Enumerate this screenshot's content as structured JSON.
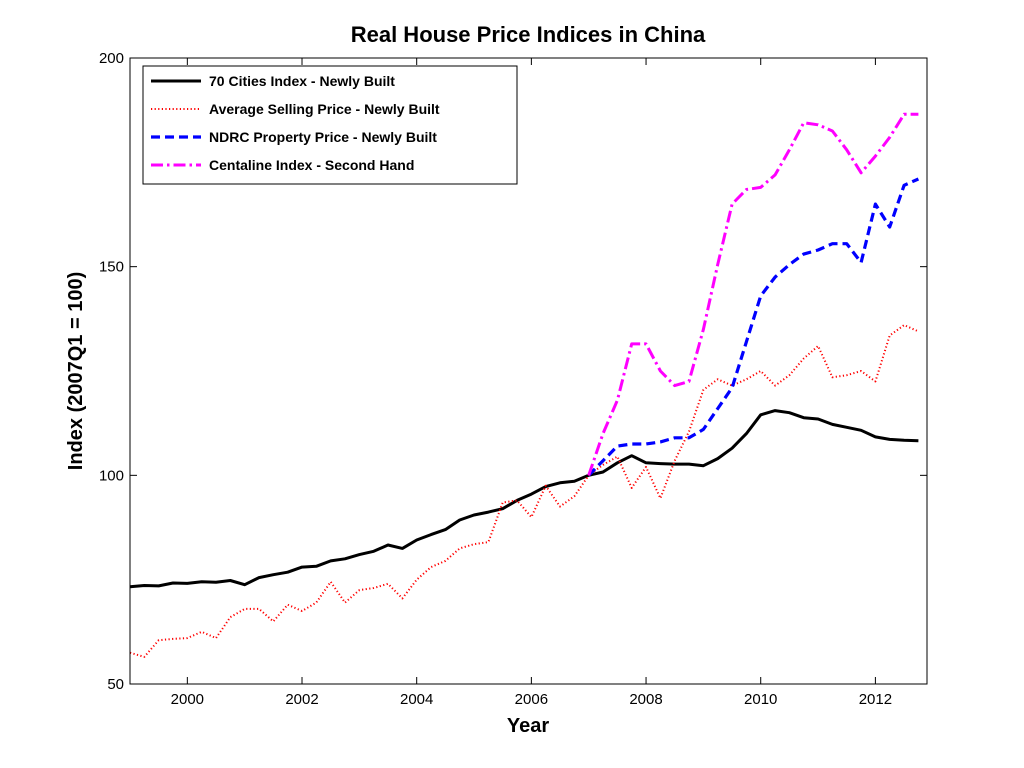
{
  "chart_data": {
    "type": "line",
    "title": "Real House Price Indices in China",
    "xlabel": "Year",
    "ylabel": "Index (2007Q1 = 100)",
    "xlim": [
      1999.0,
      2012.9
    ],
    "ylim": [
      50,
      200
    ],
    "xticks": [
      2000,
      2002,
      2004,
      2006,
      2008,
      2010,
      2012
    ],
    "yticks": [
      50,
      100,
      150,
      200
    ],
    "legend_position": "top-left",
    "grid": false,
    "series": [
      {
        "name": "70 Cities Index - Newly Built",
        "color": "#000000",
        "style": "solid",
        "x": [
          1999.0,
          1999.25,
          1999.5,
          1999.75,
          2000.0,
          2000.25,
          2000.5,
          2000.75,
          2001.0,
          2001.25,
          2001.5,
          2001.75,
          2002.0,
          2002.25,
          2002.5,
          2002.75,
          2003.0,
          2003.25,
          2003.5,
          2003.75,
          2004.0,
          2004.25,
          2004.5,
          2004.75,
          2005.0,
          2005.25,
          2005.5,
          2005.75,
          2006.0,
          2006.25,
          2006.5,
          2006.75,
          2007.0,
          2007.25,
          2007.5,
          2007.75,
          2008.0,
          2008.25,
          2008.5,
          2008.75,
          2009.0,
          2009.25,
          2009.5,
          2009.75,
          2010.0,
          2010.25,
          2010.5,
          2010.75,
          2011.0,
          2011.25,
          2011.5,
          2011.75,
          2012.0,
          2012.25,
          2012.5,
          2012.75
        ],
        "values": [
          73.3,
          73.6,
          73.5,
          74.2,
          74.1,
          74.5,
          74.4,
          74.8,
          73.8,
          75.5,
          76.2,
          76.8,
          78.0,
          78.2,
          79.5,
          80.0,
          81.0,
          81.8,
          83.3,
          82.5,
          84.5,
          85.8,
          87.0,
          89.3,
          90.5,
          91.2,
          92.0,
          94.0,
          95.5,
          97.3,
          98.2,
          98.6,
          100.0,
          100.8,
          103.0,
          104.7,
          103.0,
          102.8,
          102.7,
          102.7,
          102.3,
          104.0,
          106.5,
          110.0,
          114.5,
          115.5,
          115.0,
          113.8,
          113.5,
          112.2,
          111.5,
          110.8,
          109.2,
          108.6,
          108.4,
          108.3
        ]
      },
      {
        "name": "Average Selling Price - Newly Built",
        "color": "#ff0000",
        "style": "dotted",
        "x": [
          1999.0,
          1999.25,
          1999.5,
          1999.75,
          2000.0,
          2000.25,
          2000.5,
          2000.75,
          2001.0,
          2001.25,
          2001.5,
          2001.75,
          2002.0,
          2002.25,
          2002.5,
          2002.75,
          2003.0,
          2003.25,
          2003.5,
          2003.75,
          2004.0,
          2004.25,
          2004.5,
          2004.75,
          2005.0,
          2005.25,
          2005.5,
          2005.75,
          2006.0,
          2006.25,
          2006.5,
          2006.75,
          2007.0,
          2007.25,
          2007.5,
          2007.75,
          2008.0,
          2008.25,
          2008.5,
          2008.75,
          2009.0,
          2009.25,
          2009.5,
          2009.75,
          2010.0,
          2010.25,
          2010.5,
          2010.75,
          2011.0,
          2011.25,
          2011.5,
          2011.75,
          2012.0,
          2012.25,
          2012.5,
          2012.75
        ],
        "values": [
          57.5,
          56.5,
          60.5,
          60.8,
          61.0,
          62.5,
          61.0,
          66.0,
          68.0,
          68.0,
          65.0,
          69.0,
          67.5,
          69.5,
          74.5,
          69.5,
          72.5,
          73.0,
          74.0,
          70.5,
          75.0,
          78.0,
          79.5,
          82.5,
          83.5,
          84.0,
          93.5,
          94.0,
          90.0,
          97.5,
          92.5,
          95.0,
          100.0,
          102.5,
          104.5,
          97.0,
          102.0,
          94.5,
          103.5,
          110.5,
          120.5,
          123.0,
          121.5,
          123.0,
          125.0,
          121.5,
          124.0,
          128.0,
          131.0,
          123.5,
          124.0,
          125.0,
          122.5,
          133.5,
          136.0,
          134.5
        ]
      },
      {
        "name": "NDRC Property Price - Newly Built",
        "color": "#0000ff",
        "style": "dashed",
        "x": [
          2007.0,
          2007.25,
          2007.5,
          2007.75,
          2008.0,
          2008.25,
          2008.5,
          2008.75,
          2009.0,
          2009.25,
          2009.5,
          2009.75,
          2010.0,
          2010.25,
          2010.5,
          2010.75,
          2011.0,
          2011.25,
          2011.5,
          2011.75,
          2012.0,
          2012.25,
          2012.5,
          2012.75
        ],
        "values": [
          100.0,
          103.5,
          107.0,
          107.5,
          107.5,
          108.0,
          109.0,
          109.0,
          111.0,
          116.0,
          121.0,
          132.0,
          143.0,
          147.5,
          150.5,
          153.0,
          154.0,
          155.5,
          155.5,
          151.0,
          165.0,
          159.5,
          169.5,
          171.0
        ]
      },
      {
        "name": "Centaline Index - Second Hand",
        "color": "#ff00ff",
        "style": "dashdot",
        "x": [
          2007.0,
          2007.25,
          2007.5,
          2007.75,
          2008.0,
          2008.25,
          2008.5,
          2008.75,
          2009.0,
          2009.25,
          2009.5,
          2009.75,
          2010.0,
          2010.25,
          2010.5,
          2010.75,
          2011.0,
          2011.25,
          2011.5,
          2011.75,
          2012.0,
          2012.25,
          2012.5,
          2012.75
        ],
        "values": [
          100.0,
          110.0,
          118.0,
          131.5,
          131.5,
          125.0,
          121.5,
          122.5,
          135.0,
          150.5,
          165.0,
          168.5,
          169.0,
          172.0,
          178.0,
          184.5,
          184.0,
          182.5,
          178.0,
          172.5,
          176.5,
          181.0,
          186.5,
          186.5
        ]
      }
    ]
  }
}
